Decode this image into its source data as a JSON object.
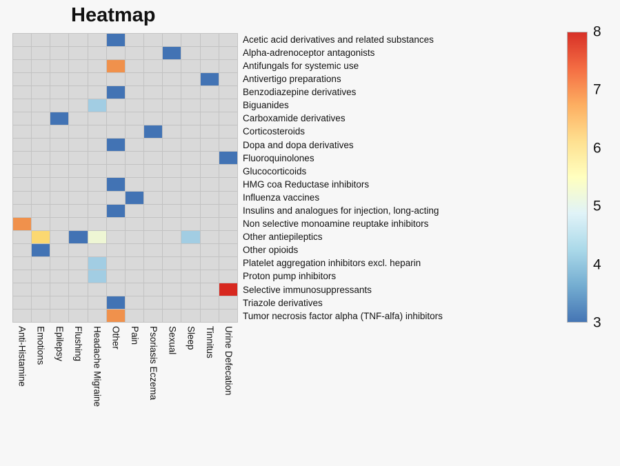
{
  "chart_data": {
    "type": "heatmap",
    "title": "Heatmap",
    "legend_position": "right",
    "columns": [
      "Anti-Histamine",
      "Emotions",
      "Epilepsy",
      "Flushing",
      "Headache Migraine",
      "Other",
      "Pain",
      "Psoriasis Eczema",
      "Sexual",
      "Sleep",
      "Tinnitus",
      "Urine Defecation"
    ],
    "rows": [
      "Acetic acid derivatives and related substances",
      "Alpha-adrenoceptor antagonists",
      "Antifungals for systemic use",
      "Antivertigo preparations",
      "Benzodiazepine derivatives",
      "Biguanides",
      "Carboxamide derivatives",
      "Corticosteroids",
      "Dopa and dopa derivatives",
      "Fluoroquinolones",
      "Glucocorticoids",
      "HMG coa Reductase inhibitors",
      "Influenza vaccines",
      "Insulins and analogues for injection, long-acting",
      "Non selective monoamine reuptake inhibitors",
      "Other antiepileptics",
      "Other opioids",
      "Platelet aggregation inhibitors excl. heparin",
      "Proton pump inhibitors",
      "Selective immunosuppressants",
      "Triazole derivatives",
      "Tumor necrosis factor alpha (TNF-alfa) inhibitors"
    ],
    "cells": [
      {
        "row": 0,
        "col": 5,
        "value": 3
      },
      {
        "row": 1,
        "col": 8,
        "value": 3
      },
      {
        "row": 2,
        "col": 5,
        "value": 7
      },
      {
        "row": 3,
        "col": 10,
        "value": 3
      },
      {
        "row": 4,
        "col": 5,
        "value": 3
      },
      {
        "row": 5,
        "col": 4,
        "value": 4
      },
      {
        "row": 6,
        "col": 2,
        "value": 3
      },
      {
        "row": 7,
        "col": 7,
        "value": 3
      },
      {
        "row": 8,
        "col": 5,
        "value": 3
      },
      {
        "row": 9,
        "col": 11,
        "value": 3
      },
      {
        "row": 11,
        "col": 5,
        "value": 3
      },
      {
        "row": 12,
        "col": 6,
        "value": 3
      },
      {
        "row": 13,
        "col": 5,
        "value": 3
      },
      {
        "row": 14,
        "col": 0,
        "value": 7
      },
      {
        "row": 15,
        "col": 1,
        "value": 6
      },
      {
        "row": 15,
        "col": 3,
        "value": 3
      },
      {
        "row": 15,
        "col": 4,
        "value": 5
      },
      {
        "row": 15,
        "col": 9,
        "value": 4
      },
      {
        "row": 16,
        "col": 1,
        "value": 3
      },
      {
        "row": 17,
        "col": 4,
        "value": 4
      },
      {
        "row": 18,
        "col": 4,
        "value": 4
      },
      {
        "row": 19,
        "col": 11,
        "value": 8
      },
      {
        "row": 20,
        "col": 5,
        "value": 3
      },
      {
        "row": 21,
        "col": 5,
        "value": 7
      }
    ],
    "value_colors": {
      "3": "#4273b4",
      "4": "#a2cde3",
      "5": "#eef6d4",
      "6": "#fbd871",
      "7": "#f0914c",
      "8": "#d7281f"
    },
    "empty_color": "#d9d9d9",
    "grid_line_color": "#c2c2c2",
    "colorbar": {
      "min": 3,
      "max": 8,
      "ticks": [
        8,
        7,
        6,
        5,
        4,
        3
      ],
      "gradient_stops_bottom_to_top": [
        "#4575b4",
        "#74add1",
        "#abd9e9",
        "#e0f3f8",
        "#ffffbf",
        "#fee090",
        "#fdae61",
        "#f46d43",
        "#d73027"
      ]
    }
  }
}
